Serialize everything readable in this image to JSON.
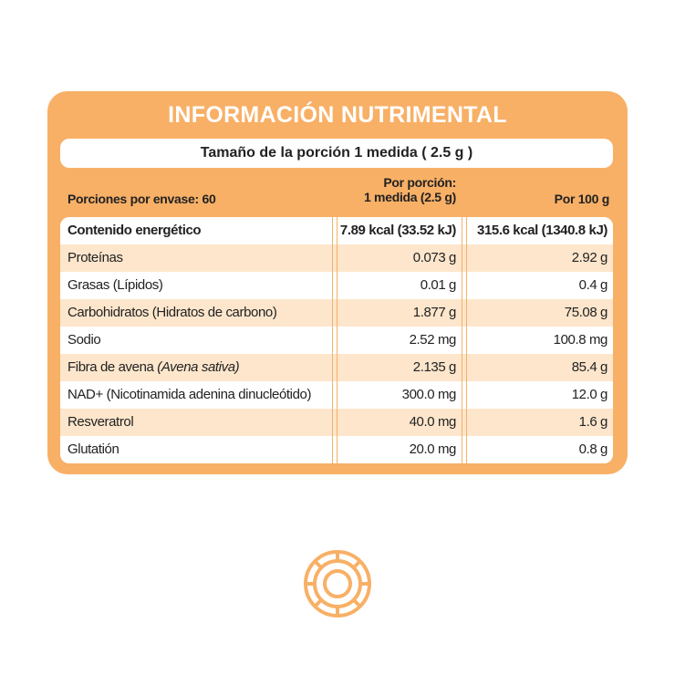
{
  "header": {
    "title": "INFORMACIÓN NUTRIMENTAL",
    "serving_size": "Tamaño de la porción 1 medida ( 2.5 g )"
  },
  "table": {
    "servings": "Porciones por envase: 60",
    "col_portion": [
      "Por porción:",
      "1 medida (2.5 g)"
    ],
    "col_100g": "Por 100 g",
    "rows": [
      {
        "name": "Contenido energético",
        "portion": "7.89 kcal (33.52 kJ)",
        "per100": "315.6 kcal (1340.8 kJ)"
      },
      {
        "name": "Proteínas",
        "portion": "0.073 g",
        "per100": "2.92 g"
      },
      {
        "name": "Grasas (Lípidos)",
        "portion": "0.01 g",
        "per100": "0.4 g"
      },
      {
        "name": "Carbohidratos (Hidratos de carbono)",
        "portion": "1.877 g",
        "per100": "75.08 g"
      },
      {
        "name": "Sodio",
        "portion": "2.52 mg",
        "per100": "100.8 mg"
      },
      {
        "name": "Fibra de avena",
        "note": "(Avena sativa)",
        "portion": "2.135 g",
        "per100": "85.4 g"
      },
      {
        "name": "NAD+ (Nicotinamida adenina dinucleótido)",
        "portion": "300.0 mg",
        "per100": "12.0 g"
      },
      {
        "name": "Resveratrol",
        "portion": "40.0 mg",
        "per100": "1.6 g"
      },
      {
        "name": "Glutatión",
        "portion": "20.0 mg",
        "per100": "0.8 g"
      }
    ]
  }
}
